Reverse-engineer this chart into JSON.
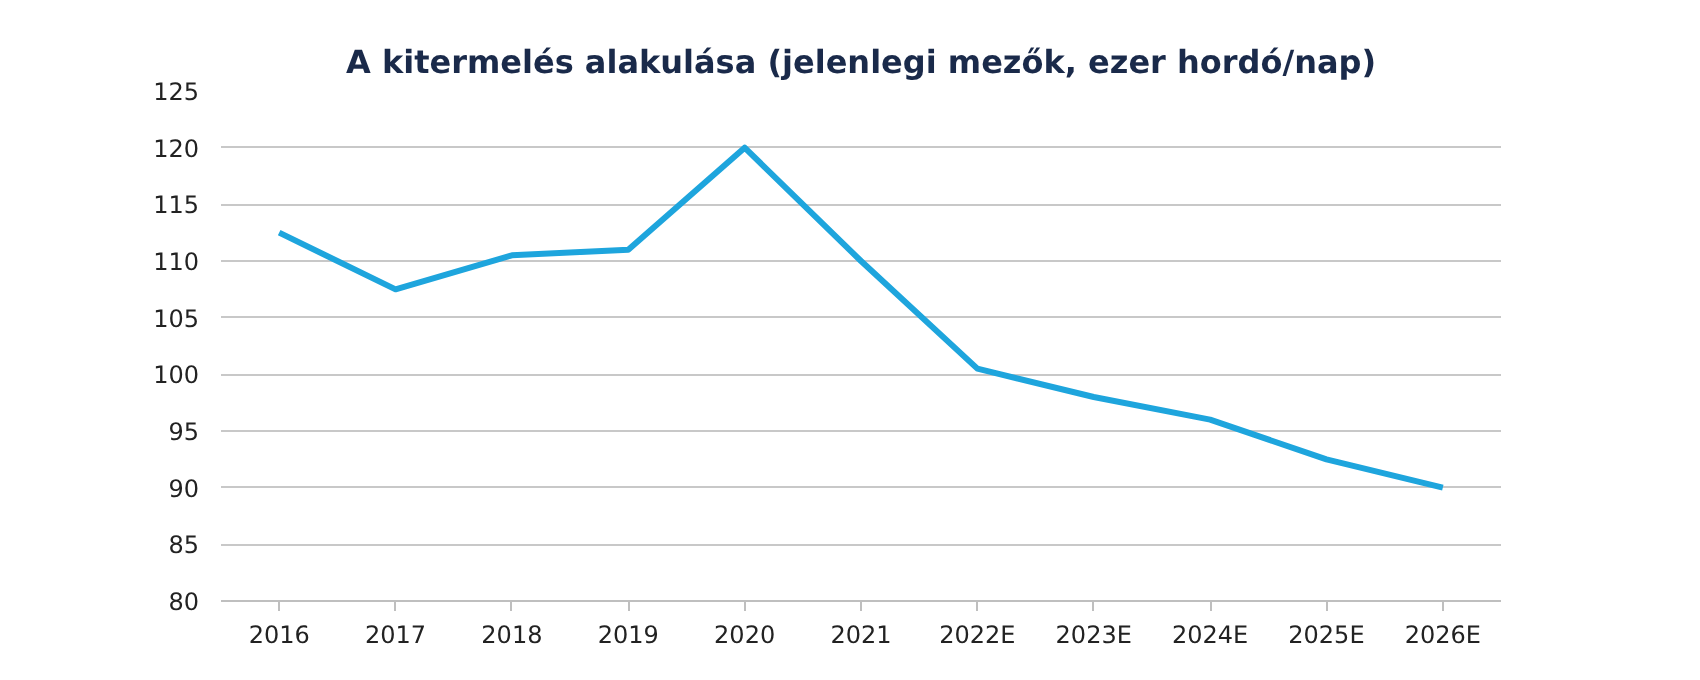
{
  "chart_data": {
    "type": "line",
    "title": "A kitermelés alakulása (jelenlegi mezők, ezer hordó/nap)",
    "categories": [
      "2016",
      "2017",
      "2018",
      "2019",
      "2020",
      "2021",
      "2022E",
      "2023E",
      "2024E",
      "2025E",
      "2026E"
    ],
    "series": [
      {
        "color": "#1ea5dd",
        "values": [
          112.5,
          107.5,
          110.5,
          111,
          120,
          110,
          100.5,
          98,
          96,
          92.5,
          90
        ]
      }
    ],
    "ylim": [
      80,
      125
    ],
    "yticks": [
      80,
      85,
      90,
      95,
      100,
      105,
      110,
      115,
      120,
      125
    ],
    "grid": "y",
    "marker": "none",
    "line_style": "solid"
  }
}
